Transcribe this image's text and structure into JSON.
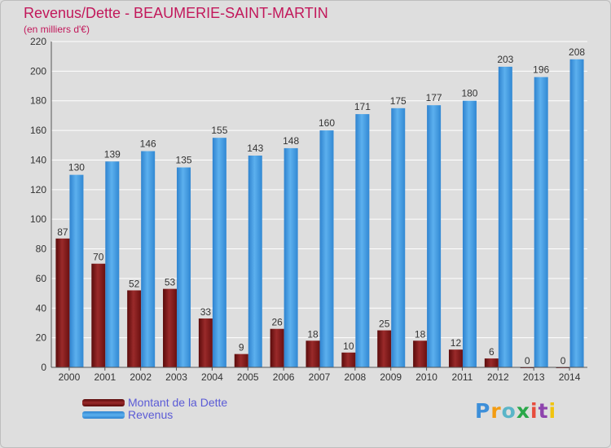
{
  "title": "Revenus/Dette - BEAUMERIE-SAINT-MARTIN",
  "subtitle": "(en milliers d'€)",
  "legend": {
    "dette_label": "Montant de la Dette",
    "revenus_label": "Revenus"
  },
  "logo": {
    "text": "Proxiti",
    "colors": [
      "#3d8fd9",
      "#f39c12",
      "#5ab5c8",
      "#2aa84a",
      "#e74c3c",
      "#8e44ad",
      "#f1c40f"
    ]
  },
  "colors": {
    "dette": "#8b1a1a",
    "revenus": "#3a95de",
    "axis_text": "#333333",
    "grid": "#ffffff"
  },
  "chart_data": {
    "type": "bar",
    "categories": [
      "2000",
      "2001",
      "2002",
      "2003",
      "2004",
      "2005",
      "2006",
      "2007",
      "2008",
      "2009",
      "2010",
      "2011",
      "2012",
      "2013",
      "2014"
    ],
    "series": [
      {
        "name": "Montant de la Dette",
        "values": [
          87,
          70,
          52,
          53,
          33,
          9,
          26,
          18,
          10,
          25,
          18,
          12,
          6,
          0,
          0
        ]
      },
      {
        "name": "Revenus",
        "values": [
          130,
          139,
          146,
          135,
          155,
          143,
          148,
          160,
          171,
          175,
          177,
          180,
          203,
          196,
          208
        ]
      }
    ],
    "ylim": [
      0,
      220
    ],
    "yticks": [
      0,
      20,
      40,
      60,
      80,
      100,
      120,
      140,
      160,
      180,
      200,
      220
    ],
    "grid": true
  }
}
